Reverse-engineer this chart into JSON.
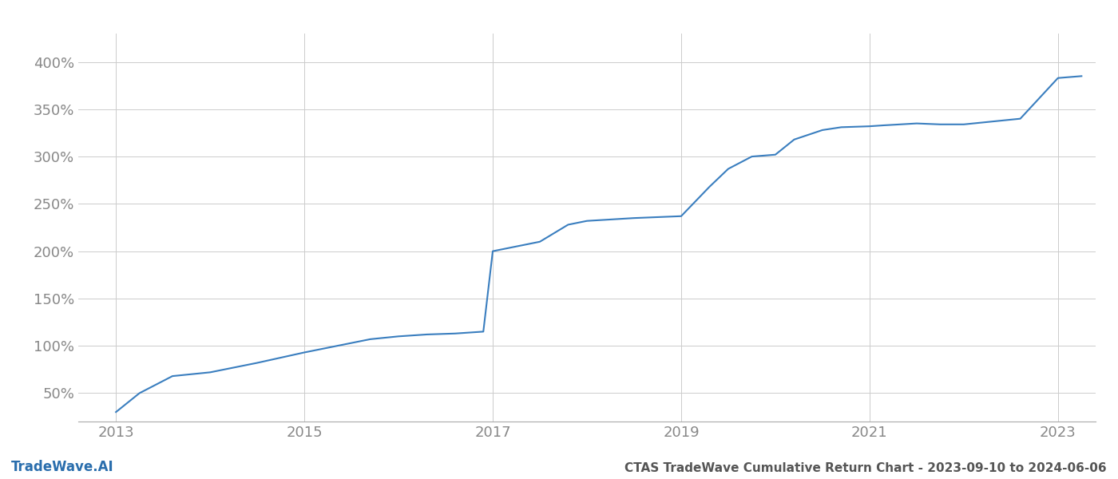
{
  "title": "CTAS TradeWave Cumulative Return Chart - 2023-09-10 to 2024-06-06",
  "watermark": "TradeWave.AI",
  "line_color": "#3a7ebf",
  "background_color": "#ffffff",
  "grid_color": "#cccccc",
  "data_x": [
    2013.0,
    2013.25,
    2013.6,
    2014.0,
    2014.5,
    2015.0,
    2015.3,
    2015.7,
    2016.0,
    2016.3,
    2016.6,
    2016.9,
    2017.0,
    2017.5,
    2017.8,
    2018.0,
    2018.5,
    2019.0,
    2019.3,
    2019.5,
    2019.75,
    2020.0,
    2020.2,
    2020.5,
    2020.7,
    2021.0,
    2021.15,
    2021.5,
    2021.75,
    2022.0,
    2022.3,
    2022.6,
    2023.0,
    2023.25
  ],
  "data_y": [
    30,
    50,
    68,
    72,
    82,
    93,
    99,
    107,
    110,
    112,
    113,
    115,
    200,
    210,
    228,
    232,
    235,
    237,
    268,
    287,
    300,
    302,
    318,
    328,
    331,
    332,
    333,
    335,
    334,
    334,
    337,
    340,
    383,
    385
  ],
  "xlim": [
    2012.6,
    2023.4
  ],
  "ylim": [
    20,
    430
  ],
  "yticks": [
    50,
    100,
    150,
    200,
    250,
    300,
    350,
    400
  ],
  "xticks": [
    2013,
    2015,
    2017,
    2019,
    2021,
    2023
  ],
  "tick_label_color": "#888888",
  "title_color": "#555555",
  "watermark_color": "#2a6ead",
  "line_width": 1.5,
  "figsize": [
    14,
    6
  ],
  "dpi": 100
}
